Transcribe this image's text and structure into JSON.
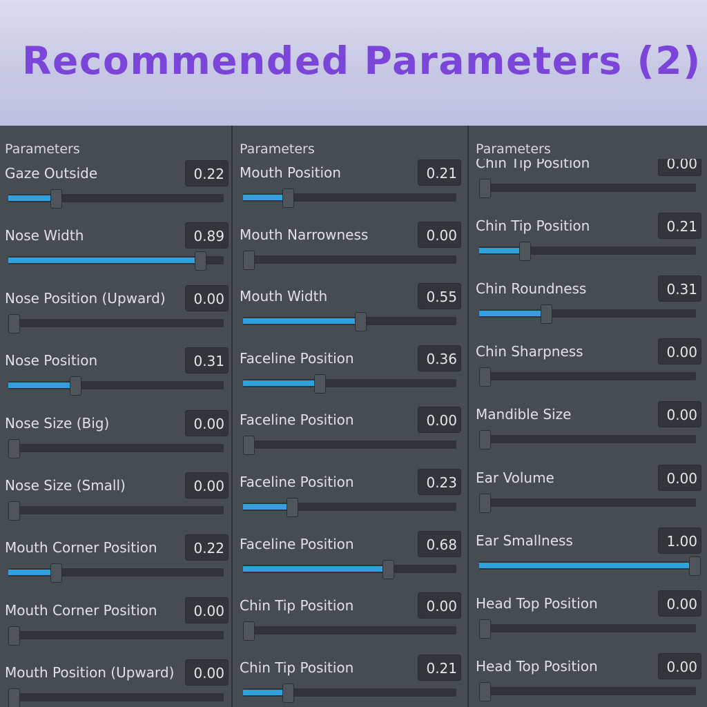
{
  "title": "Recommended Parameters (2)",
  "colors": {
    "accent": "#2fa2de",
    "title": "#7b45d9",
    "panel": "#474c52"
  },
  "columns": [
    {
      "header": "Parameters",
      "rows": [
        {
          "label": "Gaze Outside",
          "value": "0.22",
          "level": 0.22
        },
        {
          "label": "Nose Width",
          "value": "0.89",
          "level": 0.89
        },
        {
          "label": "Nose Position (Upward)",
          "value": "0.00",
          "level": 0
        },
        {
          "label": "Nose Position",
          "value": "0.31",
          "level": 0.31
        },
        {
          "label": "Nose Size (Big)",
          "value": "0.00",
          "level": 0
        },
        {
          "label": "Nose Size (Small)",
          "value": "0.00",
          "level": 0
        },
        {
          "label": "Mouth Corner Position",
          "value": "0.22",
          "level": 0.22
        },
        {
          "label": "Mouth Corner Position",
          "value": "0.00",
          "level": 0
        },
        {
          "label": "Mouth Position (Upward)",
          "value": "0.00",
          "level": 0
        }
      ]
    },
    {
      "header": "Parameters",
      "rows": [
        {
          "label": "Mouth Position",
          "value": "0.21",
          "level": 0.21
        },
        {
          "label": "Mouth Narrowness",
          "value": "0.00",
          "level": 0
        },
        {
          "label": "Mouth Width",
          "value": "0.55",
          "level": 0.55
        },
        {
          "label": "Faceline Position",
          "value": "0.36",
          "level": 0.36
        },
        {
          "label": "Faceline Position",
          "value": "0.00",
          "level": 0
        },
        {
          "label": "Faceline Position",
          "value": "0.23",
          "level": 0.23
        },
        {
          "label": "Faceline Position",
          "value": "0.68",
          "level": 0.68
        },
        {
          "label": "Chin Tip Position",
          "value": "0.00",
          "level": 0
        },
        {
          "label": "Chin Tip Position",
          "value": "0.21",
          "level": 0.21
        }
      ]
    },
    {
      "header": "Parameters",
      "rows": [
        {
          "label": "Chin Tip Position",
          "value": "0.00",
          "level": 0
        },
        {
          "label": "Chin Tip Position",
          "value": "0.21",
          "level": 0.21
        },
        {
          "label": "Chin Roundness",
          "value": "0.31",
          "level": 0.31
        },
        {
          "label": "Chin Sharpness",
          "value": "0.00",
          "level": 0
        },
        {
          "label": "Mandible Size",
          "value": "0.00",
          "level": 0
        },
        {
          "label": "Ear Volume",
          "value": "0.00",
          "level": 0
        },
        {
          "label": "Ear Smallness",
          "value": "1.00",
          "level": 1
        },
        {
          "label": "Head Top Position",
          "value": "0.00",
          "level": 0
        },
        {
          "label": "Head Top Position",
          "value": "0.00",
          "level": 0
        }
      ]
    }
  ]
}
